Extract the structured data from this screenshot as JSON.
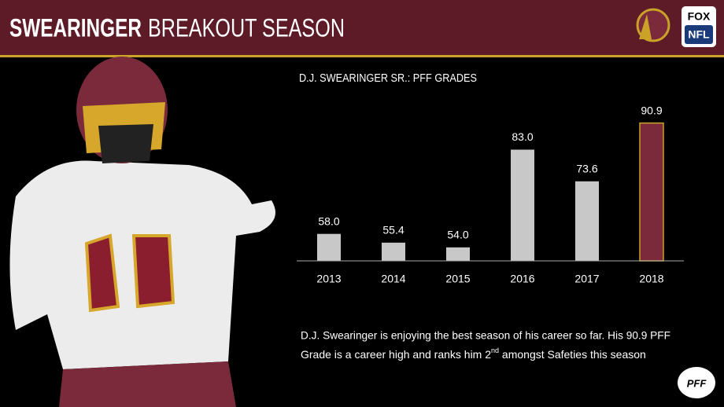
{
  "header": {
    "title_strong": "SWEARINGER",
    "title": "BREAKOUT SEASON",
    "logo_lines": [
      "FOX",
      "NFL"
    ],
    "footer_logo": "PFF"
  },
  "chart_data": {
    "type": "bar",
    "title": "D.J. SWEARINGER SR.: PFF GRADES",
    "categories": [
      "2013",
      "2014",
      "2015",
      "2016",
      "2017",
      "2018"
    ],
    "values": [
      58,
      55.4,
      54,
      83,
      73.6,
      90.9
    ],
    "value_labels": [
      "58.0",
      "55.4",
      "54.0",
      "83.0",
      "73.6",
      "90.9"
    ],
    "colors": [
      "#c8c8c8",
      "#c8c8c8",
      "#c8c8c8",
      "#c8c8c8",
      "#c8c8c8",
      "#7a2a3b"
    ],
    "ylim": [
      50,
      95
    ],
    "annotation": [
      "D.J. Swearinger is enjoying the best season of his career so far. His 90.9 PFF",
      "Grade is a career high and ranks him 2",
      "nd",
      " amongst Safeties this season"
    ]
  }
}
